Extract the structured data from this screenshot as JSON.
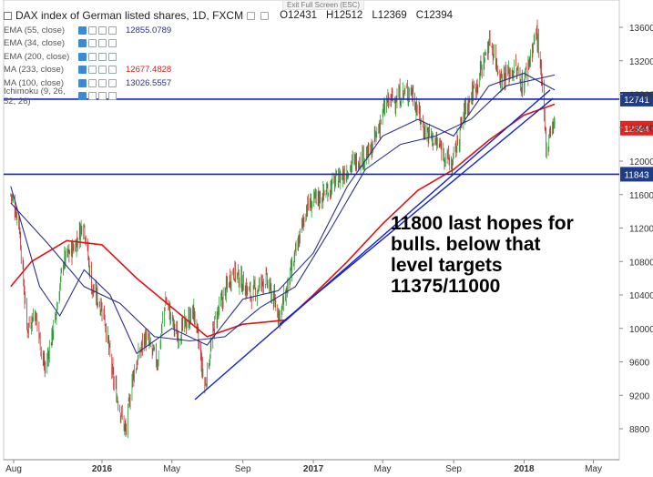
{
  "window": {
    "exit_fullscreen": "Exit Full Screen (ESC)"
  },
  "legend": {
    "title": "DAX index of German listed shares, 1D, FXCM",
    "ohlc": {
      "open": "O12431",
      "high": "H12512",
      "low": "L12369",
      "close": "C12394"
    },
    "indicators": [
      {
        "label": "EMA (55, close)",
        "value": "12855.0789",
        "color": "#2a2f8f"
      },
      {
        "label": "EMA (34, close)",
        "value": "",
        "color": "#2a2f8f"
      },
      {
        "label": "EMA (200, close)",
        "value": "",
        "color": "#2a2f8f"
      },
      {
        "label": "MA (233, close)",
        "value": "12677.4828",
        "color": "#d81e1e"
      },
      {
        "label": "MA (100, close)",
        "value": "13026.5557",
        "color": "#2a2f8f"
      },
      {
        "label": "Ichimoku (9, 26, 52, 26)",
        "value": "",
        "color": "#2a2f8f"
      }
    ]
  },
  "annotation": {
    "lines": [
      "11800 last hopes for",
      "bulls. below that",
      "level targets",
      "11375/11000"
    ]
  },
  "colors": {
    "bull": "#2e9e3a",
    "bear": "#c23030",
    "ma233": "#e01515",
    "ema": "#2a2f8f",
    "level": "#1424c8",
    "trend": "#1424c8"
  },
  "chart_data": {
    "type": "line",
    "title": "DAX index of German listed shares, 1D, FXCM",
    "y_ticks": [
      8800,
      9200,
      9600,
      10000,
      10400,
      10800,
      11200,
      11600,
      12000,
      12400,
      12800,
      13200,
      13600
    ],
    "x_ticks": [
      "Aug",
      "2016",
      "May",
      "Sep",
      "2017",
      "May",
      "Sep",
      "2018",
      "May"
    ],
    "ylim": [
      8600,
      13750
    ],
    "horizontal_levels": [
      {
        "value": 12741,
        "label": "12741"
      },
      {
        "value": 11843,
        "label": "11843"
      }
    ],
    "last_price": {
      "value": 12394,
      "label": "12394"
    },
    "price_path": [
      [
        "2015-07-27",
        11600
      ],
      [
        "2015-08-10",
        11300
      ],
      [
        "2015-08-24",
        10000
      ],
      [
        "2015-09-07",
        10200
      ],
      [
        "2015-09-24",
        9500
      ],
      [
        "2015-10-12",
        10100
      ],
      [
        "2015-10-26",
        10800
      ],
      [
        "2015-11-16",
        11000
      ],
      [
        "2015-11-30",
        11300
      ],
      [
        "2015-12-14",
        10500
      ],
      [
        "2016-01-04",
        10200
      ],
      [
        "2016-01-20",
        9400
      ],
      [
        "2016-02-11",
        8750
      ],
      [
        "2016-02-22",
        9400
      ],
      [
        "2016-03-15",
        9900
      ],
      [
        "2016-04-06",
        9600
      ],
      [
        "2016-04-20",
        10350
      ],
      [
        "2016-05-10",
        9900
      ],
      [
        "2016-06-08",
        10200
      ],
      [
        "2016-06-27",
        9300
      ],
      [
        "2016-07-15",
        10100
      ],
      [
        "2016-08-15",
        10700
      ],
      [
        "2016-09-15",
        10400
      ],
      [
        "2016-10-10",
        10600
      ],
      [
        "2016-11-04",
        10150
      ],
      [
        "2016-11-25",
        10700
      ],
      [
        "2016-12-20",
        11450
      ],
      [
        "2017-01-18",
        11600
      ],
      [
        "2017-02-15",
        11800
      ],
      [
        "2017-03-15",
        12000
      ],
      [
        "2017-04-10",
        12100
      ],
      [
        "2017-05-08",
        12700
      ],
      [
        "2017-06-20",
        12850
      ],
      [
        "2017-07-10",
        12400
      ],
      [
        "2017-08-10",
        12150
      ],
      [
        "2017-08-29",
        11950
      ],
      [
        "2017-09-20",
        12600
      ],
      [
        "2017-10-12",
        12950
      ],
      [
        "2017-11-03",
        13450
      ],
      [
        "2017-11-21",
        13000
      ],
      [
        "2017-12-18",
        13100
      ],
      [
        "2017-12-29",
        12900
      ],
      [
        "2018-01-23",
        13550
      ],
      [
        "2018-02-02",
        12800
      ],
      [
        "2018-02-09",
        12100
      ],
      [
        "2018-02-15",
        12400
      ],
      [
        "2018-02-23",
        12450
      ]
    ],
    "series": [
      {
        "key": "ma233",
        "color": "#e01515",
        "points": [
          [
            "2015-07-27",
            10500
          ],
          [
            "2015-09-01",
            10800
          ],
          [
            "2015-11-01",
            11050
          ],
          [
            "2016-01-01",
            11000
          ],
          [
            "2016-03-01",
            10600
          ],
          [
            "2016-05-01",
            10250
          ],
          [
            "2016-07-01",
            9900
          ],
          [
            "2016-09-01",
            10050
          ],
          [
            "2016-11-15",
            10100
          ],
          [
            "2017-01-01",
            10400
          ],
          [
            "2017-03-01",
            10800
          ],
          [
            "2017-05-01",
            11250
          ],
          [
            "2017-07-01",
            11650
          ],
          [
            "2017-09-01",
            11900
          ],
          [
            "2017-11-01",
            12250
          ],
          [
            "2018-01-01",
            12550
          ],
          [
            "2018-02-23",
            12680
          ]
        ]
      },
      {
        "key": "ema55",
        "color": "#2a2f8f",
        "points": [
          [
            "2015-07-27",
            11700
          ],
          [
            "2015-09-15",
            10500
          ],
          [
            "2015-10-20",
            10150
          ],
          [
            "2015-12-01",
            10700
          ],
          [
            "2016-01-15",
            10400
          ],
          [
            "2016-03-01",
            9700
          ],
          [
            "2016-05-01",
            10000
          ],
          [
            "2016-07-01",
            9800
          ],
          [
            "2016-09-01",
            10350
          ],
          [
            "2016-11-01",
            10450
          ],
          [
            "2017-01-01",
            10900
          ],
          [
            "2017-03-01",
            11700
          ],
          [
            "2017-05-01",
            12300
          ],
          [
            "2017-07-01",
            12500
          ],
          [
            "2017-09-01",
            12300
          ],
          [
            "2017-11-01",
            12900
          ],
          [
            "2018-01-01",
            13050
          ],
          [
            "2018-02-23",
            12850
          ]
        ]
      },
      {
        "key": "ma100",
        "color": "#2a2f8f",
        "points": [
          [
            "2015-07-27",
            11500
          ],
          [
            "2015-10-01",
            11000
          ],
          [
            "2015-12-01",
            10500
          ],
          [
            "2016-02-01",
            10300
          ],
          [
            "2016-04-01",
            9900
          ],
          [
            "2016-06-01",
            9850
          ],
          [
            "2016-08-01",
            9900
          ],
          [
            "2016-10-01",
            10250
          ],
          [
            "2016-12-01",
            10500
          ],
          [
            "2017-02-01",
            11200
          ],
          [
            "2017-04-01",
            11900
          ],
          [
            "2017-06-01",
            12200
          ],
          [
            "2017-08-01",
            12300
          ],
          [
            "2017-10-01",
            12500
          ],
          [
            "2017-12-01",
            12900
          ],
          [
            "2018-02-23",
            13030
          ]
        ]
      }
    ],
    "trendlines": [
      {
        "from": [
          "2016-06-10",
          9150
        ],
        "to": [
          "2018-02-15",
          12850
        ]
      },
      {
        "from": [
          "2016-11-04",
          10050
        ],
        "to": [
          "2018-02-20",
          12750
        ]
      }
    ]
  }
}
